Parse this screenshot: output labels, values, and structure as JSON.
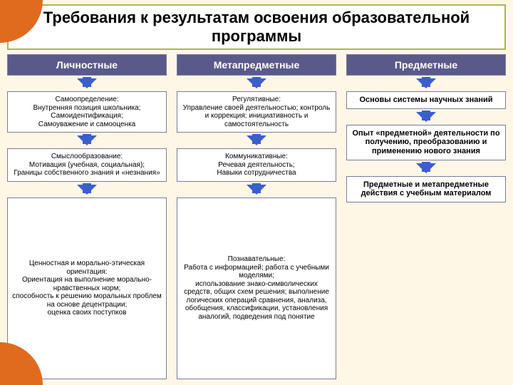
{
  "slide": {
    "background_color": "#fef7e6",
    "title": "Требования к результатам освоения образовательной программы",
    "title_fontsize": 22,
    "title_border_color": "#a8b84a",
    "title_bg": "#ffffff",
    "accent_corner_color": "#e06b1f",
    "box_border_color": "#7a7a9e",
    "box_bg": "#ffffff",
    "header_bg": "#5a5a8a",
    "arrow_color": "#3a5fcd",
    "body_fontsize_small": 10,
    "body_fontsize_med": 11
  },
  "columns": [
    {
      "header": "Личностные",
      "items": [
        "Самоопределение:\nВнутренняя позиция школьника;\nСамоидентификация;\nСамоуважение и самооценка",
        "Смыслообразование:\nМотивация (учебная, социальная);\nГраницы собственного знания и «незнания»",
        "Ценностная и морально-этическая ориентация:\nОриентация на выполнение морально-нравственных норм;\nспособность к решению моральных проблем на основе децентрации;\nоценка своих поступков"
      ]
    },
    {
      "header": "Метапредметные",
      "items": [
        "Регулятивные:\nУправление своей деятельностью; контроль и коррекция; инициативность и самостоятельность",
        "Коммуникативные:\nРечевая деятельность;\nНавыки сотрудничества",
        "Познавательные:\nРабота с информацией; работа с учебными моделями;\nиспользование знако-символических средств, общих схем решения; выполнение логических операций сравнения, анализа, обобщения, классификации, установления аналогий, подведения под понятие"
      ]
    },
    {
      "header": "Предметные",
      "items": [
        "Основы системы научных знаний",
        "Опыт «предметной» деятельности по получению, преобразованию и применению нового знания",
        "Предметные и метапредметные действия с учебным материалом"
      ]
    }
  ]
}
